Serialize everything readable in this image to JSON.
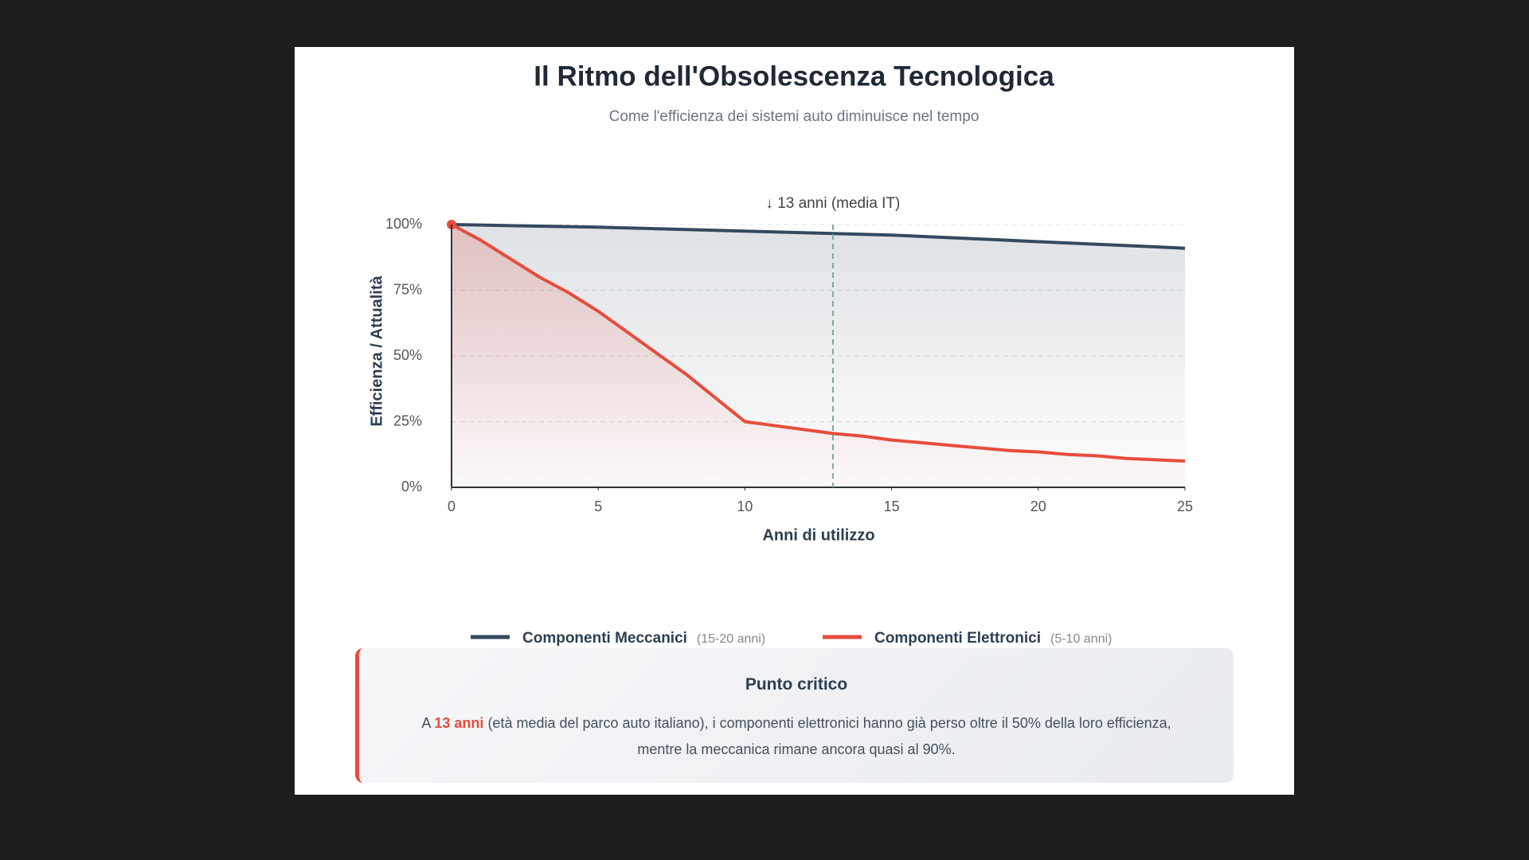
{
  "chart_data": {
    "type": "line",
    "title": "Il Ritmo dell'Obsolescenza Tecnologica",
    "subtitle": "Come l'efficienza dei sistemi auto diminuisce nel tempo",
    "x_label": "Anni di utilizzo",
    "y_label": "Efficienza / Attualità",
    "x": [
      0,
      1,
      2,
      3,
      4,
      5,
      6,
      7,
      8,
      9,
      10,
      11,
      12,
      13,
      14,
      15,
      16,
      17,
      18,
      19,
      20,
      21,
      22,
      23,
      24,
      25
    ],
    "series": [
      {
        "name": "Componenti Meccanici",
        "lifespan": "(15-20 anni)",
        "color": "#34495e",
        "values": [
          100,
          99.8,
          99.6,
          99.4,
          99.2,
          99,
          98.7,
          98.4,
          98.1,
          97.8,
          97.5,
          97.2,
          96.9,
          96.6,
          96.3,
          96,
          95.5,
          95,
          94.5,
          94,
          93.5,
          93,
          92.5,
          92,
          91.5,
          91
        ]
      },
      {
        "name": "Componenti Elettronici",
        "lifespan": "(5-10 anni)",
        "color": "#e74c3c",
        "values": [
          100,
          94,
          87,
          80,
          74,
          67,
          59,
          51,
          43,
          34,
          25,
          23.5,
          22,
          20.5,
          19.5,
          18,
          17,
          16,
          15,
          14,
          13.5,
          12.5,
          12,
          11,
          10.5,
          10
        ]
      }
    ],
    "annotation": {
      "x": 13,
      "label": "↓ 13 anni (media IT)"
    },
    "xlim": [
      0,
      25
    ],
    "xticks": [
      0,
      5,
      10,
      15,
      20,
      25
    ],
    "ylim": [
      0,
      100
    ],
    "yticks": [
      {
        "value": 0,
        "label": "0%"
      },
      {
        "value": 25,
        "label": "25%"
      },
      {
        "value": 50,
        "label": "50%"
      },
      {
        "value": 75,
        "label": "75%"
      },
      {
        "value": 100,
        "label": "100%"
      }
    ],
    "grid": true
  },
  "callout": {
    "title": "Punto critico",
    "text_before": "A",
    "highlight": "13 anni",
    "text_after": "(età media del parco auto italiano), i componenti elettronici hanno già perso oltre il 50% della loro efficienza, mentre la meccanica rimane ancora quasi al 90%."
  }
}
